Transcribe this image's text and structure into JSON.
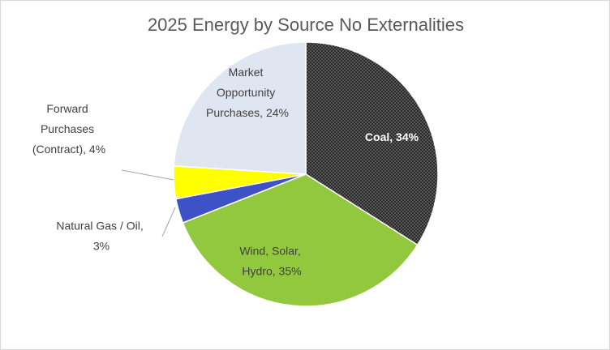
{
  "chart_data": {
    "type": "pie",
    "title": "2025 Energy by Source No Externalities",
    "values": [
      34,
      35,
      3,
      4,
      24
    ],
    "value_labels": [
      "Coal, 34%",
      "Wind, Solar, Hydro, 35%",
      "Natural Gas / Oil, 3%",
      "Forward Purchases (Contract), 4%",
      "Market Opportunity Purchases, 24%"
    ],
    "colors": [
      "#3a3a3a",
      "#92c83e",
      "#3d52c6",
      "#ffff00",
      "#dfe5f1"
    ]
  }
}
